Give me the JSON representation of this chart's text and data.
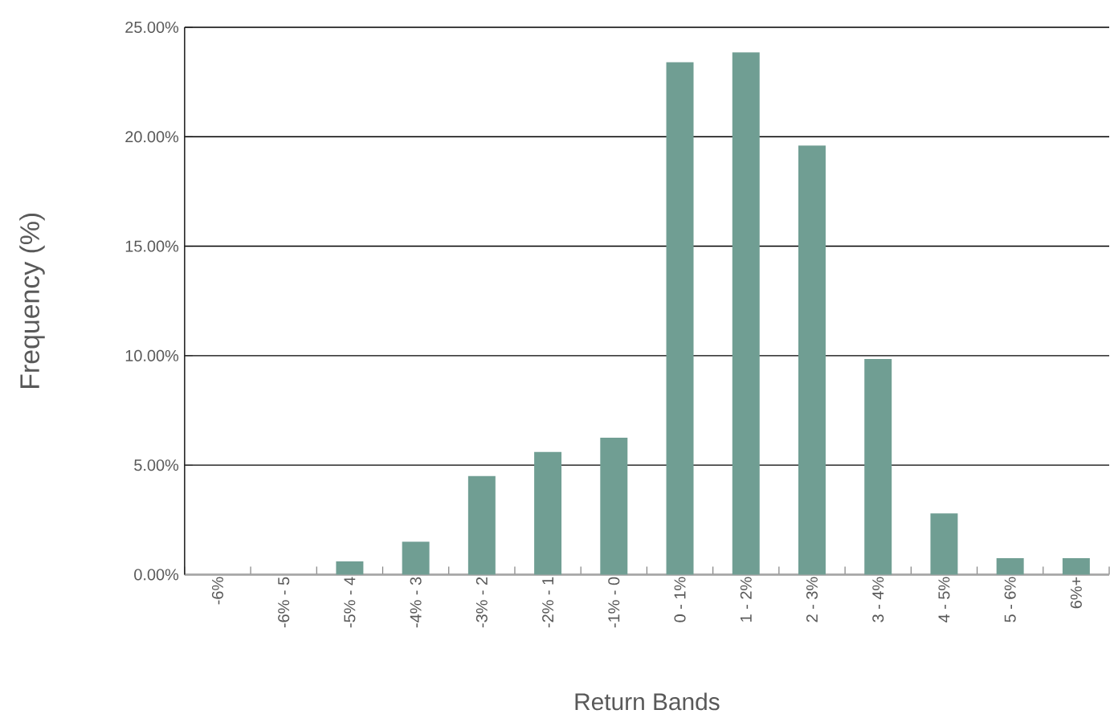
{
  "chart_data": {
    "type": "bar",
    "xlabel": "Return Bands",
    "ylabel": "Frequency (%)",
    "categories": [
      "-6%",
      "-6% - 5",
      "-5% - 4",
      "-4% - 3",
      "-3% - 2",
      "-2% - 1",
      "-1% - 0",
      "0 - 1%",
      "1 - 2%",
      "2 - 3%",
      "3 - 4%",
      "4 - 5%",
      "5 - 6%",
      "6%+"
    ],
    "values": [
      0,
      0,
      0.6,
      1.5,
      4.5,
      5.6,
      6.25,
      23.4,
      23.85,
      19.6,
      9.85,
      2.8,
      0.75,
      0.75
    ],
    "color": "#709e93",
    "ylim": [
      0,
      25
    ],
    "yticks": [
      {
        "value": 0,
        "label": "0.00%"
      },
      {
        "value": 5,
        "label": "5.00%"
      },
      {
        "value": 10,
        "label": "10.00%"
      },
      {
        "value": 15,
        "label": "15.00%"
      },
      {
        "value": 20,
        "label": "20.00%"
      },
      {
        "value": 25,
        "label": "25.00%"
      }
    ],
    "grid": "y"
  }
}
